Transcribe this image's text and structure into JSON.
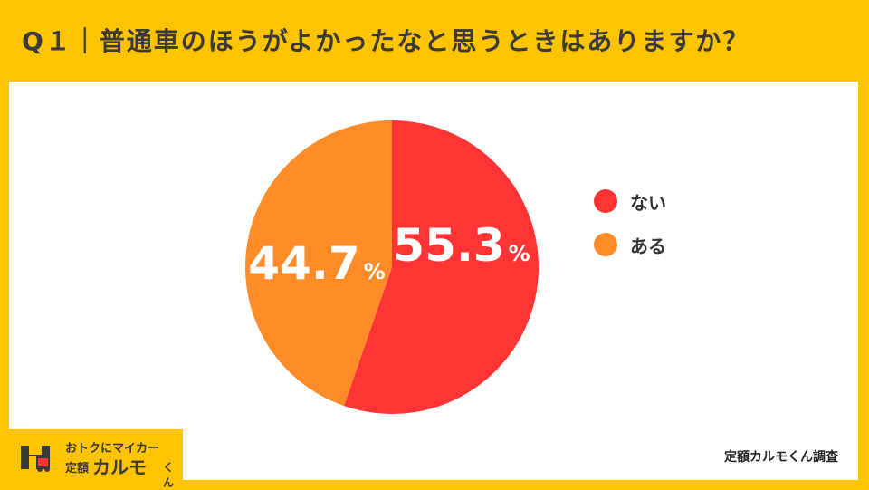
{
  "title": "Q１｜普通車のほうがよかったなと思うときはありますか？",
  "source_label": "定額カルモくん調査",
  "logo": {
    "line1": "おトクにマイカー",
    "line2_prefix": "定額",
    "line2_main": "カルモ",
    "line2_suffix": "くん"
  },
  "colors": {
    "background": "#FFC400",
    "nai": "#FF3535",
    "aru": "#FF8C28"
  },
  "chart_data": {
    "type": "pie",
    "title": "",
    "series": [
      {
        "name": "ない",
        "value": 55.3,
        "label": "55.3",
        "unit": "%"
      },
      {
        "name": "ある",
        "value": 44.7,
        "label": "44.7",
        "unit": "%"
      }
    ],
    "start_angle": "12 o'clock",
    "direction": "clockwise",
    "legend_position": "right"
  }
}
